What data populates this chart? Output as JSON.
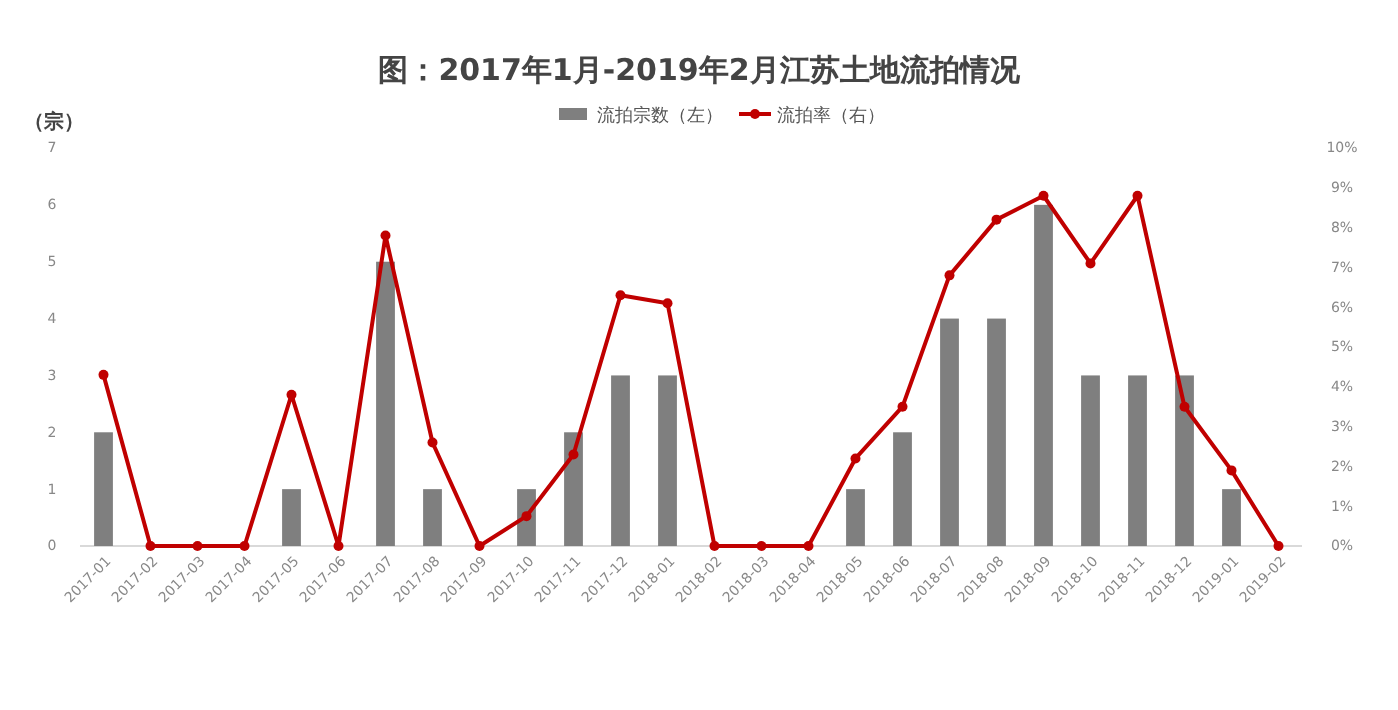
{
  "chart_data": {
    "type": "bar",
    "title": "图：2017年1月-2019年2月江苏土地流拍情况",
    "ylabel": "（宗）",
    "categories": [
      "2017-01",
      "2017-02",
      "2017-03",
      "2017-04",
      "2017-05",
      "2017-06",
      "2017-07",
      "2017-08",
      "2017-09",
      "2017-10",
      "2017-11",
      "2017-12",
      "2018-01",
      "2018-02",
      "2018-03",
      "2018-04",
      "2018-05",
      "2018-06",
      "2018-07",
      "2018-08",
      "2018-09",
      "2018-10",
      "2018-11",
      "2018-12",
      "2019-01",
      "2019-02"
    ],
    "series": [
      {
        "name": "流拍宗数（左）",
        "color": "#7f7f7f",
        "values": [
          2,
          0,
          0,
          0,
          1,
          0,
          5,
          1,
          0,
          1,
          2,
          3,
          3,
          0,
          0,
          0,
          1,
          2,
          4,
          4,
          6,
          3,
          3,
          3,
          1,
          0
        ]
      },
      {
        "name": "流拍率（右）",
        "type": "line",
        "axis": "y2",
        "color": "#c00000",
        "values": [
          4.3,
          0,
          0,
          0,
          3.8,
          0,
          7.8,
          2.6,
          0,
          0.75,
          2.3,
          6.3,
          6.1,
          0,
          0,
          0,
          2.2,
          3.5,
          6.8,
          8.2,
          8.8,
          7.1,
          8.8,
          3.5,
          1.9,
          0
        ]
      }
    ],
    "ylim": [
      0,
      7
    ],
    "yticks": [
      0,
      1,
      2,
      3,
      4,
      5,
      6,
      7
    ],
    "y2lim": [
      0,
      10
    ],
    "y2ticks": [
      {
        "value": 0,
        "label": "0%"
      },
      {
        "value": 1,
        "label": "1%"
      },
      {
        "value": 2,
        "label": "2%"
      },
      {
        "value": 3,
        "label": "3%"
      },
      {
        "value": 4,
        "label": "4%"
      },
      {
        "value": 5,
        "label": "5%"
      },
      {
        "value": 6,
        "label": "6%"
      },
      {
        "value": 7,
        "label": "7%"
      },
      {
        "value": 8,
        "label": "8%"
      },
      {
        "value": 9,
        "label": "9%"
      },
      {
        "value": 10,
        "label": "10%"
      }
    ],
    "legend": "top",
    "marker": "circle",
    "line_style": "solid",
    "grid": false
  }
}
